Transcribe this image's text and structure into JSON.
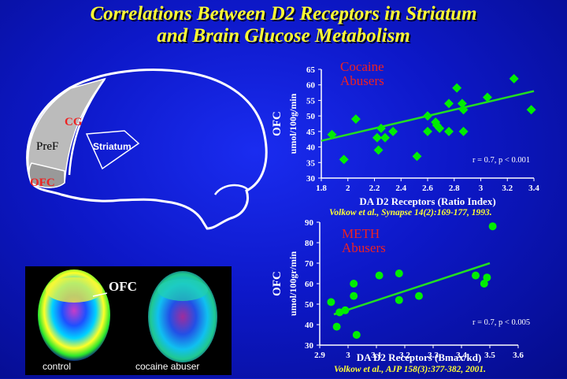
{
  "title": {
    "line1": "Correlations Between D2 Receptors in Striatum",
    "line2": "and Brain Glucose Metabolism"
  },
  "brain_diagram": {
    "labels": {
      "cg": "CG",
      "pref": "PreF",
      "ofc": "OFC",
      "striatum": "Striatum"
    }
  },
  "pet_panel": {
    "ofc_label": "OFC",
    "left_caption": "control",
    "right_caption": "cocaine abuser"
  },
  "chart_data": [
    {
      "type": "scatter",
      "title": "Cocaine Abusers",
      "xlabel": "DA D2  Receptors (Ratio Index)",
      "ylabel_line1": "OFC",
      "ylabel_line2": "umol/100g/min",
      "xlim": [
        1.8,
        3.4
      ],
      "ylim": [
        30,
        65
      ],
      "xticks": [
        "1.8",
        "2",
        "2.2",
        "2.4",
        "2.6",
        "2.8",
        "3",
        "3.2",
        "3.4"
      ],
      "yticks": [
        "30",
        "35",
        "40",
        "45",
        "50",
        "55",
        "60",
        "65"
      ],
      "stat": "r = 0.7, p < 0.001",
      "citation": "Volkow et al., Synapse 14(2):169-177, 1993.",
      "marker": "diamond",
      "marker_color": "#00ee00",
      "line_color": "#22dd22",
      "title_color": "#ee2222",
      "points": [
        [
          1.88,
          44
        ],
        [
          1.97,
          36
        ],
        [
          2.06,
          49
        ],
        [
          2.22,
          43
        ],
        [
          2.23,
          39
        ],
        [
          2.25,
          46
        ],
        [
          2.28,
          43
        ],
        [
          2.34,
          45
        ],
        [
          2.52,
          37
        ],
        [
          2.6,
          45
        ],
        [
          2.6,
          50
        ],
        [
          2.66,
          48
        ],
        [
          2.67,
          47
        ],
        [
          2.69,
          46
        ],
        [
          2.76,
          54
        ],
        [
          2.76,
          45
        ],
        [
          2.82,
          59
        ],
        [
          2.86,
          54
        ],
        [
          2.87,
          52
        ],
        [
          2.87,
          45
        ],
        [
          3.05,
          56
        ],
        [
          3.25,
          62
        ],
        [
          3.38,
          52
        ]
      ],
      "trend": [
        [
          1.8,
          42
        ],
        [
          3.4,
          58
        ]
      ]
    },
    {
      "type": "scatter",
      "title": "METH Abusers",
      "xlabel": "DA D2  Receptors     (Bmax/kd)",
      "ylabel_line1": "OFC",
      "ylabel_line2": "umol/100gr/min",
      "xlim": [
        2.9,
        3.6
      ],
      "ylim": [
        30,
        90
      ],
      "xticks": [
        "2.9",
        "3",
        "3.1",
        "3.2",
        "3.3",
        "3.4",
        "3.5",
        "3.6"
      ],
      "yticks": [
        "30",
        "40",
        "50",
        "60",
        "70",
        "80",
        "90"
      ],
      "stat": "r = 0.7, p < 0.005",
      "citation": "Volkow et al., AJP 158(3):377-382, 2001.",
      "marker": "circle",
      "marker_color": "#00ee00",
      "line_color": "#22dd22",
      "title_color": "#ee2222",
      "points": [
        [
          2.94,
          51
        ],
        [
          2.96,
          39
        ],
        [
          2.97,
          46
        ],
        [
          2.99,
          47
        ],
        [
          3.02,
          60
        ],
        [
          3.02,
          54
        ],
        [
          3.03,
          35
        ],
        [
          3.11,
          64
        ],
        [
          3.18,
          65
        ],
        [
          3.18,
          52
        ],
        [
          3.25,
          54
        ],
        [
          3.45,
          64
        ],
        [
          3.48,
          60
        ],
        [
          3.49,
          63
        ],
        [
          3.51,
          88
        ]
      ],
      "trend": [
        [
          2.95,
          45
        ],
        [
          3.5,
          70
        ]
      ]
    }
  ]
}
